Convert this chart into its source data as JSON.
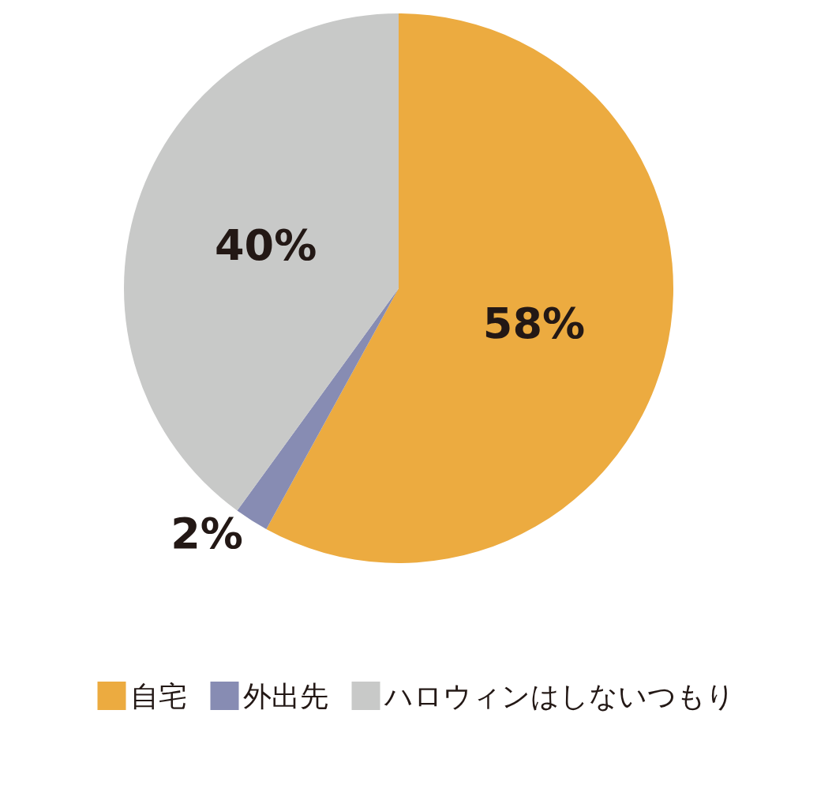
{
  "chart_data": {
    "type": "pie",
    "categories": [
      "自宅",
      "外出先",
      "ハロウィンはしないつもり"
    ],
    "values": [
      58,
      2,
      40
    ],
    "colors": [
      "#ecab40",
      "#878cb3",
      "#c8c9c8"
    ],
    "value_labels": [
      "58%",
      "2%",
      "40%"
    ],
    "legend": "bottom"
  }
}
